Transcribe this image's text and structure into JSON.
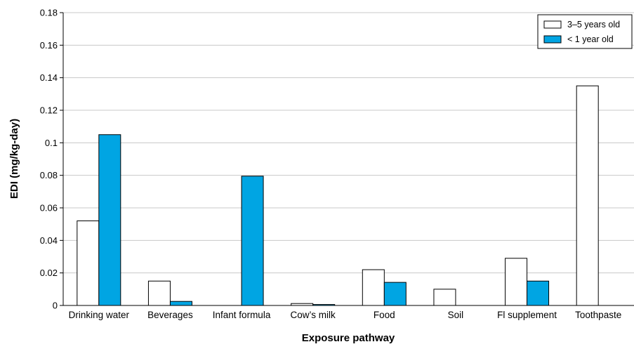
{
  "chart_data": {
    "type": "bar",
    "xlabel": "Exposure pathway",
    "ylabel": "EDI (mg/kg-day)",
    "ylim": [
      0,
      0.18
    ],
    "yticks": [
      0,
      0.02,
      0.04,
      0.06,
      0.08,
      0.1,
      0.12,
      0.14,
      0.16,
      0.18
    ],
    "ytick_labels": [
      "0",
      "0.02",
      "0.04",
      "0.06",
      "0.08",
      "0.1",
      "0.12",
      "0.14",
      "0.16",
      "0.18"
    ],
    "grid": true,
    "legend_position": "top-right",
    "categories": [
      "Drinking water",
      "Beverages",
      "Infant formula",
      "Cow’s milk",
      "Food",
      "Soil",
      "Fl supplement",
      "Toothpaste"
    ],
    "series": [
      {
        "name": "3–5 years old",
        "color": "#ffffff",
        "values": [
          0.052,
          0.015,
          0,
          0.0012,
          0.022,
          0.01,
          0.029,
          0.135
        ]
      },
      {
        "name": "< 1 year old",
        "color": "#00a5e3",
        "values": [
          0.105,
          0.0025,
          0.0795,
          0.0006,
          0.0142,
          0,
          0.015,
          0
        ]
      }
    ]
  }
}
